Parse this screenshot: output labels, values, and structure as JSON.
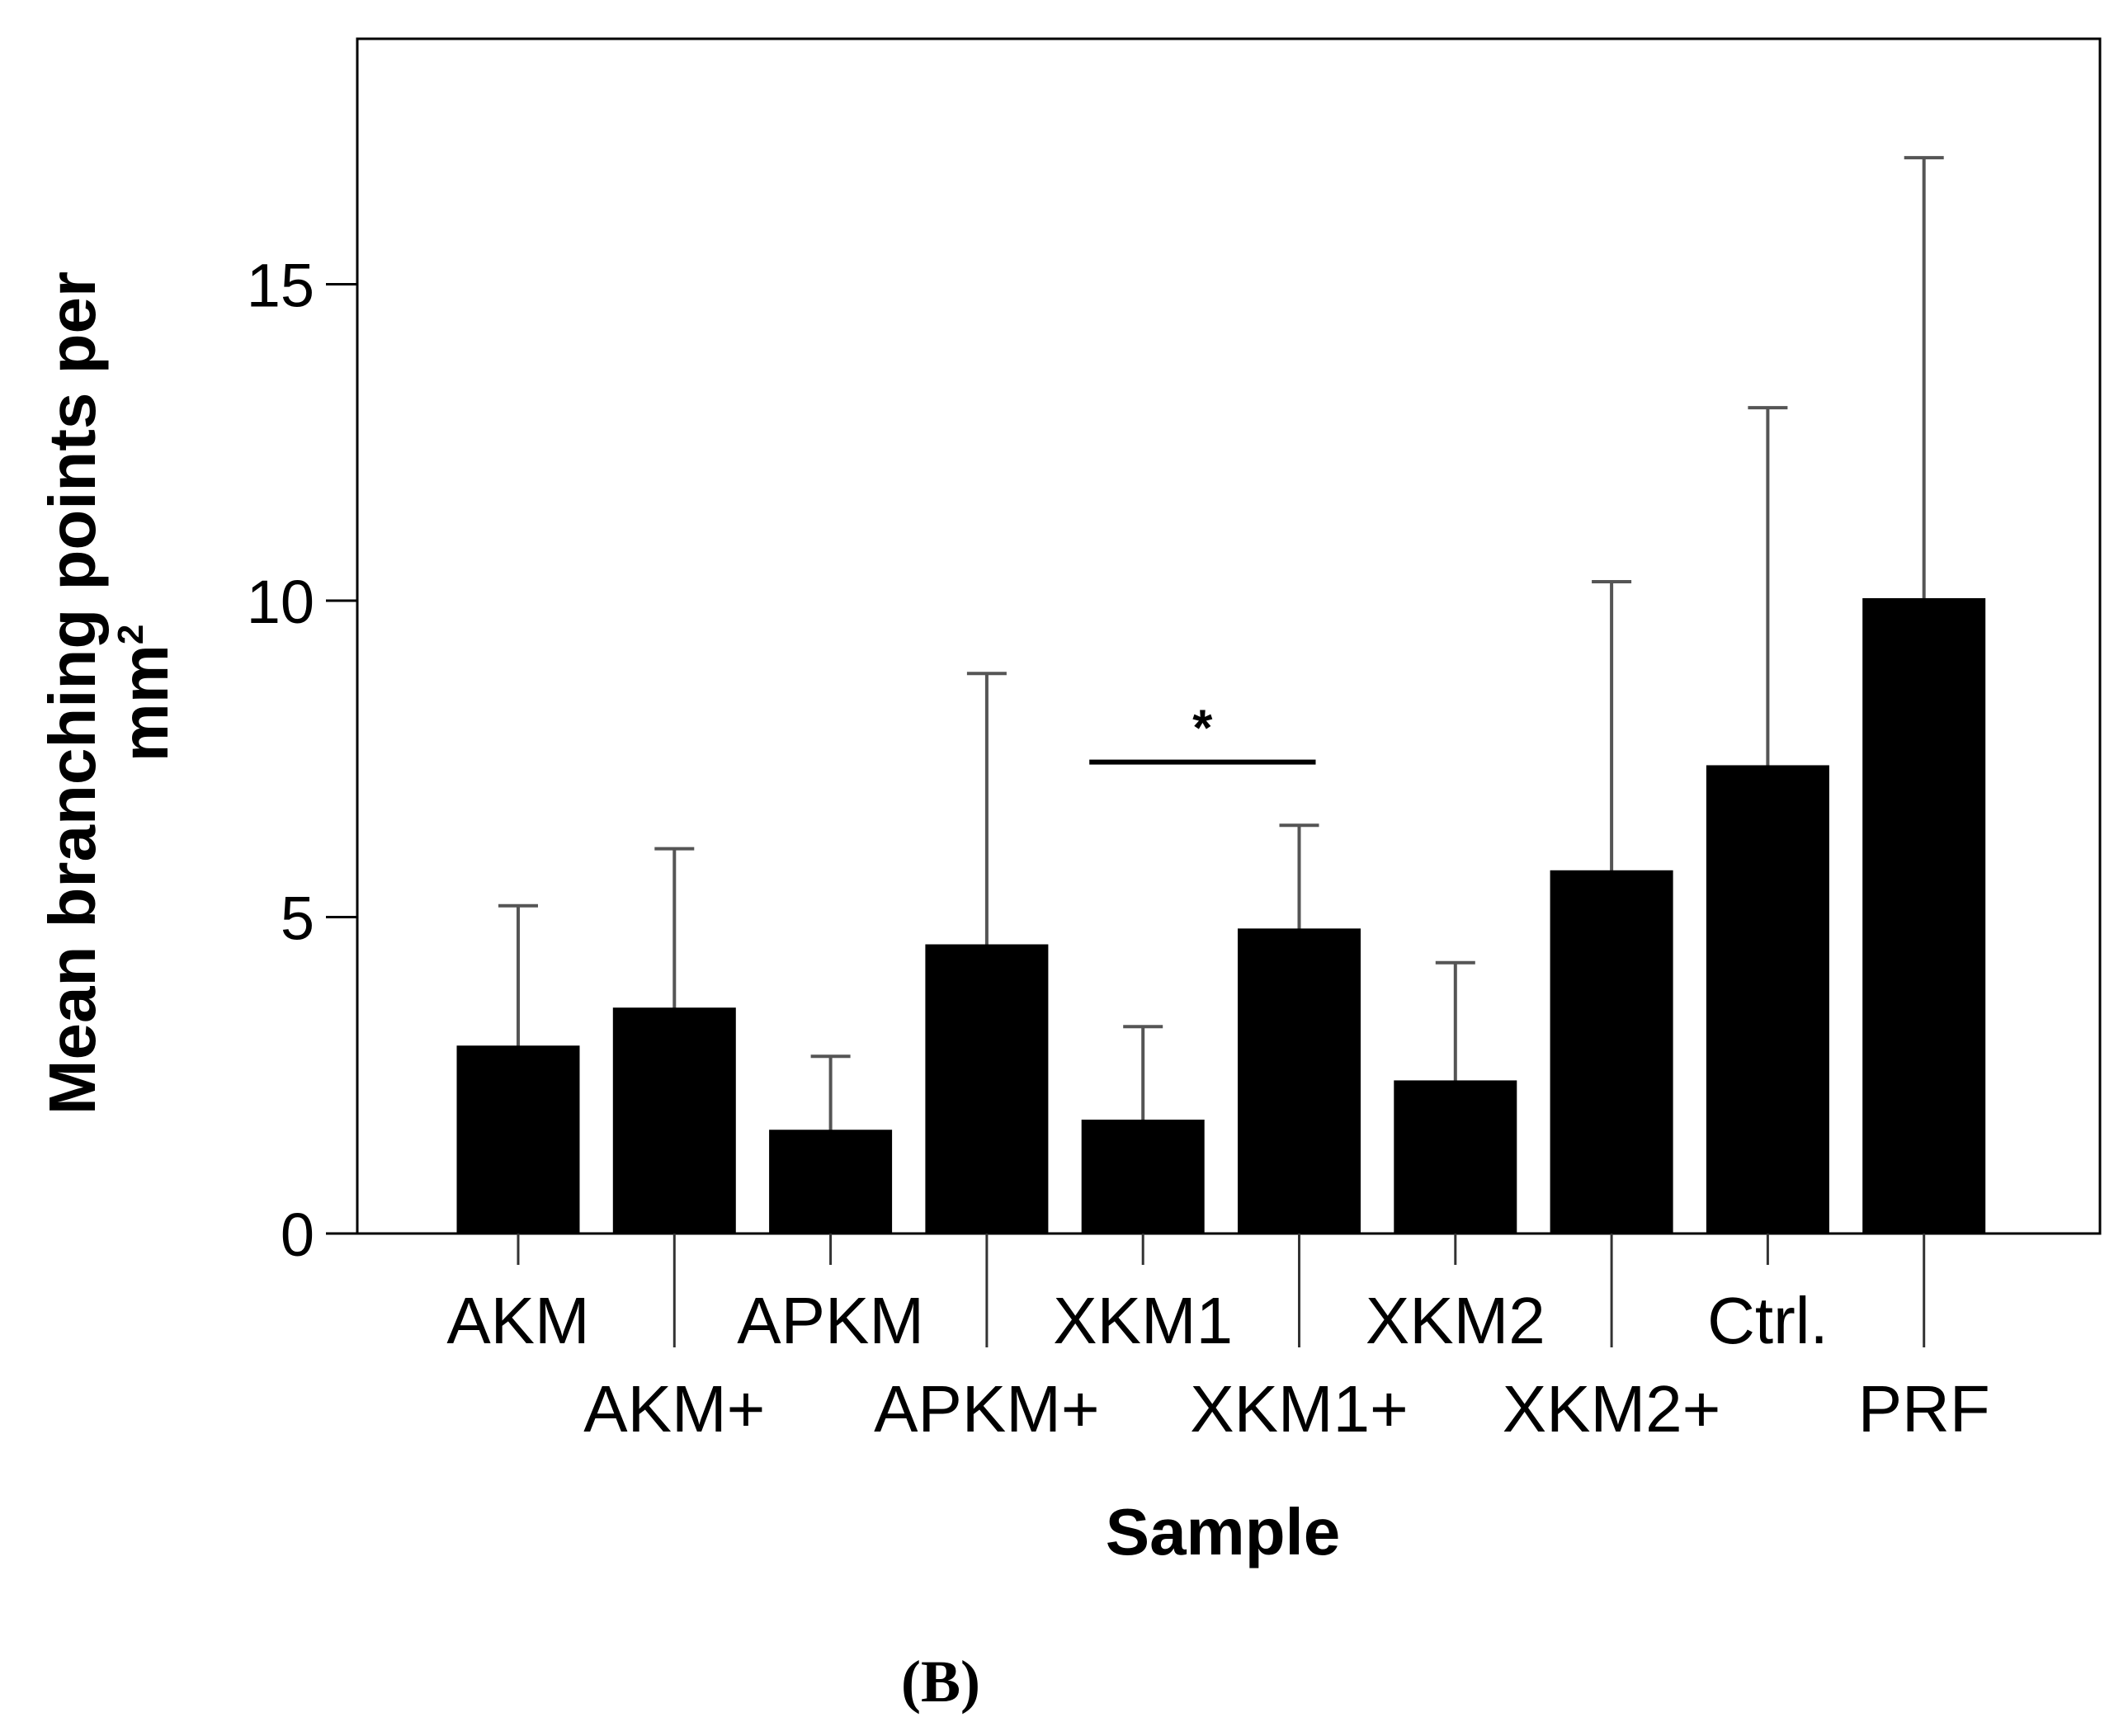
{
  "chart_data": {
    "type": "bar",
    "xlabel": "Sample",
    "ylabel_main": "Mean branching points per",
    "ylabel_unit": "mm",
    "ylabel_unit_sup": "2",
    "ylim": [
      0,
      19
    ],
    "yticks": [
      0,
      5,
      10,
      15
    ],
    "grid": false,
    "categories": [
      "AKM",
      "AKM+",
      "APKM",
      "APKM+",
      "XKM1",
      "XKM1+",
      "XKM2",
      "XKM2+",
      "Ctrl.",
      "PRF"
    ],
    "values": [
      2.95,
      3.55,
      1.62,
      4.55,
      1.78,
      4.8,
      2.4,
      5.72,
      7.38,
      10.02
    ],
    "error_upper": [
      5.18,
      6.08,
      2.8,
      8.85,
      3.27,
      6.45,
      4.28,
      10.3,
      13.05,
      17.0
    ],
    "significance": [
      {
        "from": "XKM1",
        "to": "XKM1+",
        "label": "*",
        "y": 7.45
      }
    ],
    "panel_label": "(B)",
    "colors": {
      "bar": "#000000",
      "error_bar": "#555555",
      "axis": "#000000"
    }
  }
}
